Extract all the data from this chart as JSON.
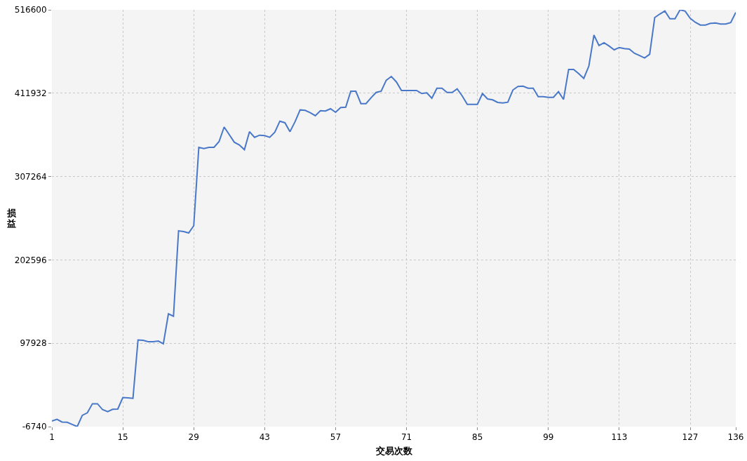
{
  "chart_data": {
    "type": "line",
    "xlabel": "交易次数",
    "ylabel": "损益",
    "x": [
      1,
      2,
      3,
      4,
      5,
      6,
      7,
      8,
      9,
      10,
      11,
      12,
      13,
      14,
      15,
      16,
      17,
      18,
      19,
      20,
      21,
      22,
      23,
      24,
      25,
      26,
      27,
      28,
      29,
      30,
      31,
      32,
      33,
      34,
      35,
      36,
      37,
      38,
      39,
      40,
      41,
      42,
      43,
      44,
      45,
      46,
      47,
      48,
      49,
      50,
      51,
      52,
      53,
      54,
      55,
      56,
      57,
      58,
      59,
      60,
      61,
      62,
      63,
      64,
      65,
      66,
      67,
      68,
      69,
      70,
      71,
      72,
      73,
      74,
      75,
      76,
      77,
      78,
      79,
      80,
      81,
      82,
      83,
      84,
      85,
      86,
      87,
      88,
      89,
      90,
      91,
      92,
      93,
      94,
      95,
      96,
      97,
      98,
      99,
      100,
      101,
      102,
      103,
      104,
      105,
      106,
      107,
      108,
      109,
      110,
      111,
      112,
      113,
      114,
      115,
      116,
      117,
      118,
      119,
      120,
      121,
      122,
      123,
      124,
      125,
      126,
      127,
      128,
      129,
      130,
      131,
      132,
      133,
      134,
      135,
      136
    ],
    "series": [
      {
        "color": "#4a78c8",
        "values": [
          300,
          2500,
          -1000,
          -1300,
          -4000,
          -6740,
          7400,
          10600,
          22000,
          22000,
          14600,
          12100,
          15000,
          15300,
          29800,
          29400,
          28800,
          102100,
          101600,
          99900,
          99900,
          100700,
          97300,
          134900,
          131900,
          239100,
          238200,
          236400,
          245500,
          343900,
          342400,
          343900,
          343900,
          351200,
          369500,
          360000,
          350400,
          346900,
          341000,
          363600,
          356500,
          359200,
          358600,
          356500,
          363000,
          376800,
          374800,
          363600,
          376200,
          390900,
          390300,
          387400,
          383600,
          390000,
          389500,
          392400,
          388000,
          393900,
          394400,
          414400,
          414400,
          398800,
          398800,
          406200,
          412900,
          414400,
          428200,
          432900,
          426100,
          415300,
          415300,
          415300,
          415300,
          411500,
          412400,
          405600,
          418200,
          418200,
          412900,
          412900,
          417300,
          408500,
          397900,
          397900,
          397900,
          411500,
          404700,
          403600,
          400300,
          399700,
          400600,
          415900,
          420300,
          420800,
          418200,
          418200,
          407600,
          407600,
          406700,
          406700,
          413800,
          404100,
          441700,
          441700,
          436400,
          430500,
          446100,
          484900,
          471700,
          475200,
          471100,
          466400,
          469300,
          467900,
          467300,
          462000,
          459300,
          456100,
          460800,
          506900,
          511300,
          515100,
          505400,
          505400,
          516600,
          515000,
          506000,
          501000,
          497500,
          497500,
          499600,
          500100,
          498700,
          498700,
          500500,
          513300
        ]
      }
    ],
    "xlim": [
      1,
      136
    ],
    "xticks": [
      1,
      15,
      29,
      43,
      57,
      71,
      85,
      99,
      113,
      127,
      136
    ],
    "ylim": [
      -6740,
      516600
    ],
    "yticks": [
      -6740,
      97928,
      202596,
      307264,
      411932,
      516600
    ],
    "grid": true,
    "marker": "none",
    "line_style": "solid"
  }
}
